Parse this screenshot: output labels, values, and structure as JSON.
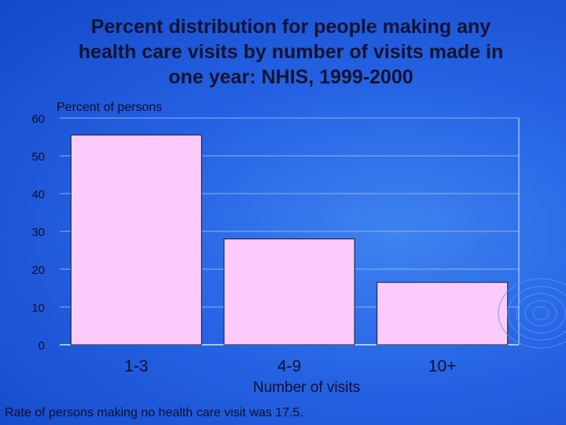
{
  "title_lines": [
    "Percent distribution for people making any",
    "health care visits by number of visits made in",
    "one year: NHIS, 1999-2000"
  ],
  "colors": {
    "bar_fill": "#fccbfc",
    "bar_stroke": "#1a1a2e",
    "grid": "#8fb0ee",
    "axis": "#d8e4fa"
  },
  "chart_data": {
    "type": "bar",
    "title": "Percent distribution for people making any health care visits by number of visits made in one year: NHIS, 1999-2000",
    "categories": [
      "1-3",
      "4-9",
      "10+"
    ],
    "values": [
      55.5,
      28,
      16.5
    ],
    "xlabel": "Number of visits",
    "ylabel": "Percent of persons",
    "ylim": [
      0,
      60
    ],
    "yticks": [
      0,
      10,
      20,
      30,
      40,
      50,
      60
    ],
    "grid": true
  },
  "footnote": "Rate of persons making no health care visit was 17.5."
}
